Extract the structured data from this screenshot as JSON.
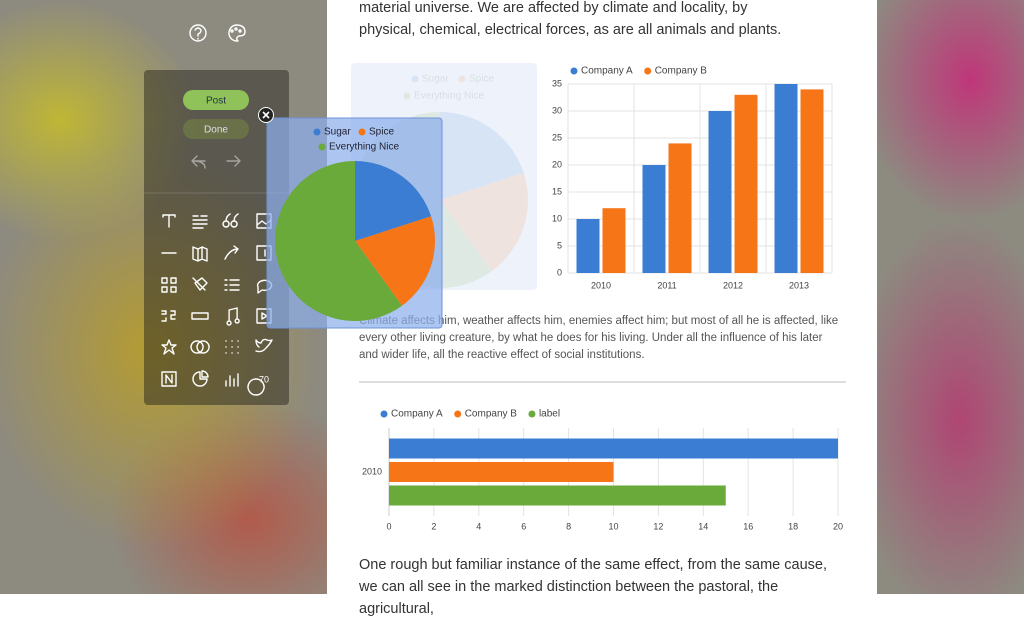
{
  "article": {
    "intro": "material universe. We are affected by climate and locality, by physical, chemical, electrical forces, as are all animals and plants.",
    "caption": "Climate affects him, weather affects him, enemies affect him; but most of all he is affected, like every other living creature, by what he does for his living. Under all the influence of his later and wider life, all the reactive effect of social institutions.",
    "body": "One rough but familiar instance of the same effect, from the same cause, we can all see in the marked distinction between the pastoral, the agricultural,"
  },
  "toolbar": {
    "buttons": [
      "Post",
      "Done"
    ],
    "badge": "70"
  },
  "chart_data": [
    {
      "type": "pie",
      "categories": [
        "Sugar",
        "Spice",
        "Everything Nice"
      ],
      "values": [
        20,
        20,
        60
      ],
      "colors": [
        "#3a7dd2",
        "#f57517",
        "#6aaa3a"
      ]
    },
    {
      "type": "bar",
      "categories": [
        "2010",
        "2011",
        "2012",
        "2013"
      ],
      "series": [
        {
          "name": "Company A",
          "color": "#3a7dd2",
          "values": [
            10,
            20,
            30,
            35
          ]
        },
        {
          "name": "Company B",
          "color": "#f57517",
          "values": [
            12,
            24,
            33,
            34
          ]
        }
      ],
      "ylim": [
        0,
        35
      ],
      "yticks": [
        0,
        5,
        10,
        15,
        20,
        25,
        30,
        35
      ],
      "grid": true,
      "legend": "top"
    },
    {
      "type": "barh",
      "categories": [
        "2010"
      ],
      "series": [
        {
          "name": "Company A",
          "color": "#3a7dd2",
          "values": [
            20
          ]
        },
        {
          "name": "Company B",
          "color": "#f57517",
          "values": [
            10
          ]
        },
        {
          "name": "label",
          "color": "#6aaa3a",
          "values": [
            15
          ]
        }
      ],
      "xlim": [
        0,
        20
      ],
      "xticks": [
        0,
        2,
        4,
        6,
        8,
        10,
        12,
        14,
        16,
        18,
        20
      ],
      "grid": true,
      "legend": "top"
    }
  ]
}
